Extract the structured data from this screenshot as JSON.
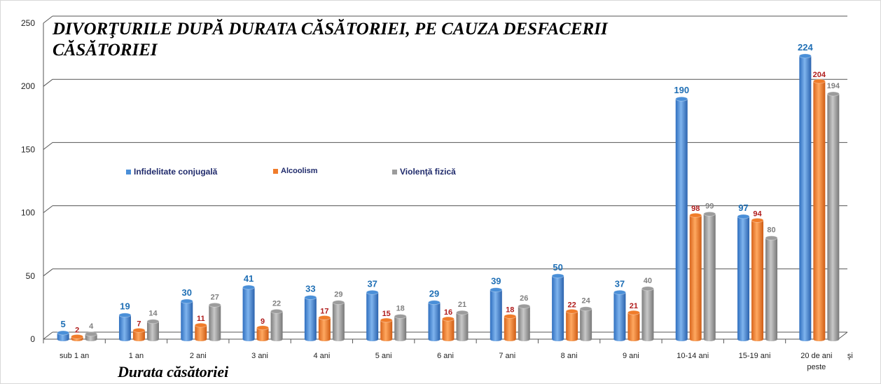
{
  "chart_data": {
    "type": "bar",
    "title": "DIVORŢURILE DUPĂ DURATA CĂSĂTORIEI, PE CAUZA DESFACERII CĂSĂTORIEI",
    "xlabel": "Durata căsătoriei",
    "ylabel": "",
    "ylim": [
      0,
      250
    ],
    "yticks": [
      0,
      50,
      100,
      150,
      200,
      250
    ],
    "grid": true,
    "legend_position": "middle-left",
    "categories": [
      "sub 1 an",
      "1 an",
      "2 ani",
      "3 ani",
      "4 ani",
      "5 ani",
      "6 ani",
      "7 ani",
      "8 ani",
      "9 ani",
      "10-14 ani",
      "15-19 ani",
      "20 de ani şi peste"
    ],
    "series": [
      {
        "name": "Infidelitate conjugală",
        "color": "#4a8fd8",
        "label_color": "#1f6fb5",
        "values": [
          5,
          19,
          30,
          41,
          33,
          37,
          29,
          39,
          50,
          37,
          190,
          97,
          224
        ]
      },
      {
        "name": "Alcoolism",
        "color": "#f07c2a",
        "label_color": "#b01c1c",
        "values": [
          2,
          7,
          11,
          9,
          17,
          15,
          16,
          18,
          22,
          21,
          98,
          94,
          204
        ]
      },
      {
        "name": "Violenţă fizică",
        "color": "#9c9c9c",
        "label_color": "#808080",
        "values": [
          4,
          14,
          27,
          22,
          29,
          18,
          21,
          26,
          24,
          40,
          99,
          80,
          194
        ]
      }
    ]
  }
}
